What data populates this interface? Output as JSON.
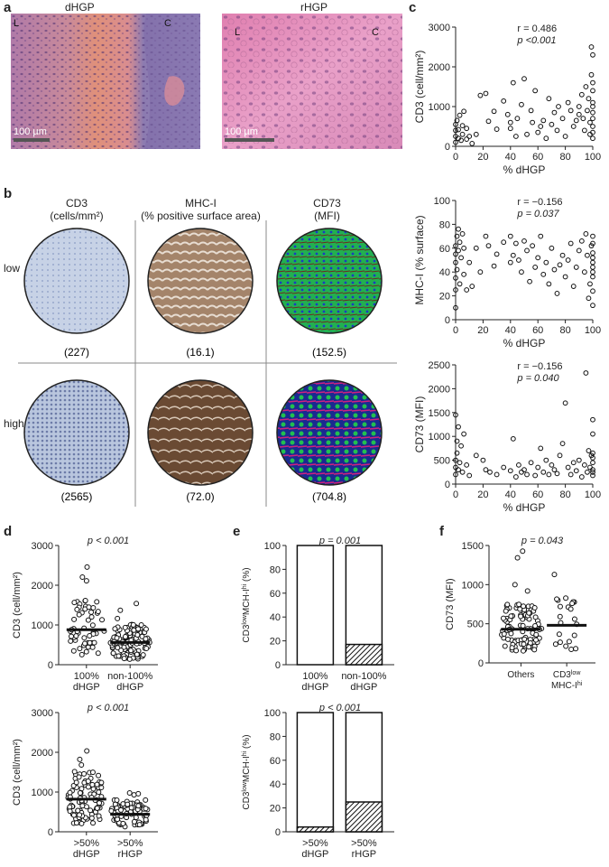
{
  "panel_letters": {
    "a": "a",
    "b": "b",
    "c": "c",
    "d": "d",
    "e": "e",
    "f": "f"
  },
  "panel_a": {
    "left": {
      "title": "dHGP",
      "corner_l": "L",
      "corner_c": "C",
      "scale": "100 µm"
    },
    "right": {
      "title": "rHGP",
      "corner_l": "L",
      "corner_c": "C",
      "scale": "100 µm"
    }
  },
  "panel_b": {
    "columns": [
      {
        "title": "CD3",
        "sub": "(cells/mm²)"
      },
      {
        "title": "MHC-I",
        "sub": "(% positive surface area)"
      },
      {
        "title": "CD73",
        "sub": "(MFI)"
      }
    ],
    "rows": [
      {
        "label": "low",
        "values": [
          "(227)",
          "(16.1)",
          "(152.5)"
        ]
      },
      {
        "label": "high",
        "values": [
          "(2565)",
          "(72.0)",
          "(704.8)"
        ]
      }
    ]
  },
  "chart_data": [
    {
      "id": "c1",
      "type": "scatter",
      "xlabel": "% dHGP",
      "ylabel": "CD3 (cell/mm²)",
      "xlim": [
        0,
        100
      ],
      "ylim": [
        0,
        3000
      ],
      "xticks": [
        0,
        20,
        40,
        60,
        80,
        100
      ],
      "yticks": [
        0,
        1000,
        2000,
        3000
      ],
      "annotation": [
        "r = 0.486",
        "p <0.001"
      ],
      "points": [
        [
          0,
          100
        ],
        [
          0,
          250
        ],
        [
          0,
          400
        ],
        [
          0,
          550
        ],
        [
          1,
          650
        ],
        [
          2,
          200
        ],
        [
          2,
          420
        ],
        [
          3,
          780
        ],
        [
          4,
          150
        ],
        [
          5,
          300
        ],
        [
          5,
          520
        ],
        [
          6,
          880
        ],
        [
          8,
          450
        ],
        [
          8,
          180
        ],
        [
          10,
          250
        ],
        [
          12,
          70
        ],
        [
          15,
          300
        ],
        [
          18,
          1280
        ],
        [
          22,
          1330
        ],
        [
          24,
          630
        ],
        [
          28,
          880
        ],
        [
          30,
          430
        ],
        [
          35,
          1140
        ],
        [
          38,
          800
        ],
        [
          40,
          600
        ],
        [
          40,
          450
        ],
        [
          42,
          1600
        ],
        [
          44,
          250
        ],
        [
          45,
          700
        ],
        [
          48,
          1050
        ],
        [
          50,
          1700
        ],
        [
          52,
          300
        ],
        [
          55,
          900
        ],
        [
          56,
          600
        ],
        [
          58,
          1400
        ],
        [
          60,
          350
        ],
        [
          62,
          500
        ],
        [
          64,
          650
        ],
        [
          66,
          200
        ],
        [
          68,
          1200
        ],
        [
          70,
          550
        ],
        [
          72,
          850
        ],
        [
          74,
          400
        ],
        [
          75,
          1000
        ],
        [
          78,
          700
        ],
        [
          80,
          250
        ],
        [
          82,
          1100
        ],
        [
          84,
          900
        ],
        [
          86,
          500
        ],
        [
          88,
          650
        ],
        [
          90,
          800
        ],
        [
          90,
          1000
        ],
        [
          92,
          1300
        ],
        [
          93,
          700
        ],
        [
          94,
          400
        ],
        [
          95,
          1500
        ],
        [
          96,
          900
        ],
        [
          97,
          1200
        ],
        [
          98,
          600
        ],
        [
          98,
          300
        ],
        [
          99,
          1800
        ],
        [
          99,
          2500
        ],
        [
          100,
          2300
        ],
        [
          100,
          1000
        ],
        [
          100,
          700
        ],
        [
          100,
          500
        ],
        [
          100,
          200
        ],
        [
          100,
          1400
        ],
        [
          100,
          1100
        ],
        [
          100,
          1600
        ],
        [
          100,
          850
        ],
        [
          100,
          350
        ]
      ]
    },
    {
      "id": "c2",
      "type": "scatter",
      "xlabel": "% dHGP",
      "ylabel": "MHC-I (% surface)",
      "xlim": [
        0,
        100
      ],
      "ylim": [
        0,
        100
      ],
      "xticks": [
        0,
        20,
        40,
        60,
        80,
        100
      ],
      "yticks": [
        0,
        20,
        40,
        60,
        80,
        100
      ],
      "annotation": [
        "r = −0.156",
        "p = 0.037"
      ],
      "points": [
        [
          0,
          10
        ],
        [
          0,
          25
        ],
        [
          0,
          35
        ],
        [
          0,
          48
        ],
        [
          0,
          55
        ],
        [
          0,
          62
        ],
        [
          1,
          70
        ],
        [
          1,
          42
        ],
        [
          2,
          76
        ],
        [
          2,
          58
        ],
        [
          3,
          65
        ],
        [
          3,
          30
        ],
        [
          4,
          52
        ],
        [
          5,
          72
        ],
        [
          6,
          60
        ],
        [
          6,
          38
        ],
        [
          8,
          25
        ],
        [
          10,
          48
        ],
        [
          12,
          28
        ],
        [
          15,
          60
        ],
        [
          18,
          40
        ],
        [
          22,
          70
        ],
        [
          24,
          62
        ],
        [
          28,
          45
        ],
        [
          30,
          55
        ],
        [
          35,
          65
        ],
        [
          40,
          70
        ],
        [
          40,
          48
        ],
        [
          42,
          54
        ],
        [
          44,
          64
        ],
        [
          46,
          50
        ],
        [
          48,
          40
        ],
        [
          50,
          66
        ],
        [
          52,
          58
        ],
        [
          54,
          32
        ],
        [
          56,
          62
        ],
        [
          58,
          44
        ],
        [
          60,
          52
        ],
        [
          62,
          70
        ],
        [
          64,
          38
        ],
        [
          66,
          48
        ],
        [
          68,
          30
        ],
        [
          70,
          60
        ],
        [
          72,
          42
        ],
        [
          74,
          22
        ],
        [
          76,
          46
        ],
        [
          78,
          54
        ],
        [
          80,
          36
        ],
        [
          82,
          50
        ],
        [
          84,
          64
        ],
        [
          86,
          28
        ],
        [
          88,
          44
        ],
        [
          90,
          58
        ],
        [
          92,
          66
        ],
        [
          94,
          40
        ],
        [
          95,
          72
        ],
        [
          96,
          54
        ],
        [
          97,
          18
        ],
        [
          98,
          30
        ],
        [
          99,
          62
        ],
        [
          100,
          70
        ],
        [
          100,
          12
        ],
        [
          100,
          24
        ],
        [
          100,
          36
        ],
        [
          100,
          48
        ],
        [
          100,
          56
        ],
        [
          100,
          64
        ],
        [
          100,
          44
        ],
        [
          100,
          52
        ],
        [
          100,
          40
        ]
      ]
    },
    {
      "id": "c3",
      "type": "scatter",
      "xlabel": "% dHGP",
      "ylabel": "CD73 (MFI)",
      "xlim": [
        0,
        100
      ],
      "ylim": [
        0,
        2500
      ],
      "xticks": [
        0,
        20,
        40,
        60,
        80,
        100
      ],
      "yticks": [
        0,
        500,
        1000,
        1500,
        2000,
        2500
      ],
      "annotation": [
        "r = −0.156",
        "p = 0.040"
      ],
      "points": [
        [
          0,
          1450
        ],
        [
          0,
          200
        ],
        [
          0,
          350
        ],
        [
          0,
          500
        ],
        [
          1,
          650
        ],
        [
          1,
          900
        ],
        [
          2,
          300
        ],
        [
          2,
          1200
        ],
        [
          3,
          450
        ],
        [
          4,
          800
        ],
        [
          5,
          250
        ],
        [
          6,
          1050
        ],
        [
          8,
          400
        ],
        [
          10,
          180
        ],
        [
          15,
          600
        ],
        [
          20,
          500
        ],
        [
          22,
          300
        ],
        [
          25,
          250
        ],
        [
          30,
          200
        ],
        [
          35,
          350
        ],
        [
          40,
          280
        ],
        [
          42,
          950
        ],
        [
          44,
          150
        ],
        [
          46,
          400
        ],
        [
          48,
          250
        ],
        [
          50,
          300
        ],
        [
          52,
          200
        ],
        [
          55,
          450
        ],
        [
          58,
          180
        ],
        [
          60,
          350
        ],
        [
          62,
          750
        ],
        [
          64,
          250
        ],
        [
          66,
          500
        ],
        [
          68,
          200
        ],
        [
          70,
          400
        ],
        [
          72,
          300
        ],
        [
          74,
          220
        ],
        [
          76,
          600
        ],
        [
          78,
          850
        ],
        [
          80,
          1700
        ],
        [
          82,
          350
        ],
        [
          84,
          200
        ],
        [
          86,
          450
        ],
        [
          88,
          280
        ],
        [
          90,
          500
        ],
        [
          92,
          150
        ],
        [
          94,
          400
        ],
        [
          95,
          2330
        ],
        [
          96,
          250
        ],
        [
          97,
          700
        ],
        [
          98,
          350
        ],
        [
          99,
          600
        ],
        [
          100,
          300
        ],
        [
          100,
          450
        ],
        [
          100,
          550
        ],
        [
          100,
          180
        ],
        [
          100,
          1350
        ],
        [
          100,
          1050
        ],
        [
          100,
          650
        ],
        [
          100,
          250
        ]
      ]
    },
    {
      "id": "d1",
      "type": "scatter",
      "ylabel": "CD3 (cell/mm²)",
      "ylim": [
        0,
        3000
      ],
      "yticks": [
        0,
        1000,
        2000,
        3000
      ],
      "categories": [
        "100%\ndHGP",
        "non-100%\ndHGP"
      ],
      "annotation": [
        "p < 0.001"
      ],
      "means": [
        880,
        560
      ]
    },
    {
      "id": "d2",
      "type": "scatter",
      "ylabel": "CD3 (cell/mm²)",
      "ylim": [
        0,
        3000
      ],
      "yticks": [
        0,
        1000,
        2000,
        3000
      ],
      "categories": [
        ">50%\ndHGP",
        ">50%\nrHGP"
      ],
      "annotation": [
        "p < 0.001"
      ],
      "means": [
        820,
        440
      ]
    },
    {
      "id": "e1",
      "type": "bar",
      "ylabel": "CD3lowMCH-Ihi (%)",
      "ylim": [
        0,
        100
      ],
      "yticks": [
        0,
        20,
        40,
        60,
        80,
        100
      ],
      "categories": [
        "100%\ndHGP",
        "non-100%\ndHGP"
      ],
      "annotation": [
        "p = 0.001"
      ],
      "values": [
        0,
        17
      ]
    },
    {
      "id": "e2",
      "type": "bar",
      "ylabel": "CD3lowMCH-Ihi (%)",
      "ylim": [
        0,
        100
      ],
      "yticks": [
        0,
        20,
        40,
        60,
        80,
        100
      ],
      "categories": [
        ">50%\ndHGP",
        ">50%\nrHGP"
      ],
      "annotation": [
        "p < 0.001"
      ],
      "values": [
        4,
        25
      ]
    },
    {
      "id": "f1",
      "type": "scatter",
      "ylabel": "CD73 (MFI)",
      "ylim": [
        0,
        1500
      ],
      "yticks": [
        0,
        500,
        1000,
        1500
      ],
      "categories": [
        "Others",
        "CD3low\nMHC-Ihi"
      ],
      "annotation": [
        "p = 0.043"
      ],
      "means": [
        430,
        480
      ]
    }
  ]
}
